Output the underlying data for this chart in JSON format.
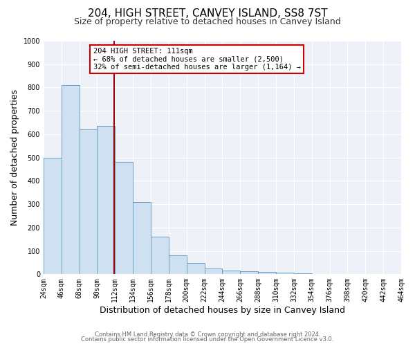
{
  "title": "204, HIGH STREET, CANVEY ISLAND, SS8 7ST",
  "subtitle": "Size of property relative to detached houses in Canvey Island",
  "xlabel": "Distribution of detached houses by size in Canvey Island",
  "ylabel": "Number of detached properties",
  "bar_color": "#cfe0f0",
  "bar_edge_color": "#6a9fc0",
  "background_color": "#eef2f8",
  "grid_color": "#ffffff",
  "bin_edges": [
    24,
    46,
    68,
    90,
    112,
    134,
    156,
    178,
    200,
    222,
    244,
    266,
    288,
    310,
    332,
    354,
    376,
    398,
    420,
    442,
    464
  ],
  "bar_heights": [
    500,
    810,
    620,
    635,
    480,
    310,
    160,
    80,
    47,
    25,
    17,
    14,
    10,
    6,
    3,
    2,
    1,
    0,
    0,
    0
  ],
  "vline_x": 111,
  "vline_color": "#990000",
  "ylim": [
    0,
    1000
  ],
  "yticks": [
    0,
    100,
    200,
    300,
    400,
    500,
    600,
    700,
    800,
    900,
    1000
  ],
  "annotation_title": "204 HIGH STREET: 111sqm",
  "annotation_line1": "← 68% of detached houses are smaller (2,500)",
  "annotation_line2": "32% of semi-detached houses are larger (1,164) →",
  "annotation_box_color": "#ffffff",
  "annotation_box_edge": "#cc0000",
  "footer_line1": "Contains HM Land Registry data © Crown copyright and database right 2024.",
  "footer_line2": "Contains public sector information licensed under the Open Government Licence v3.0.",
  "title_fontsize": 11,
  "subtitle_fontsize": 9,
  "tick_label_size": 7,
  "axis_label_size": 9,
  "footer_fontsize": 6
}
